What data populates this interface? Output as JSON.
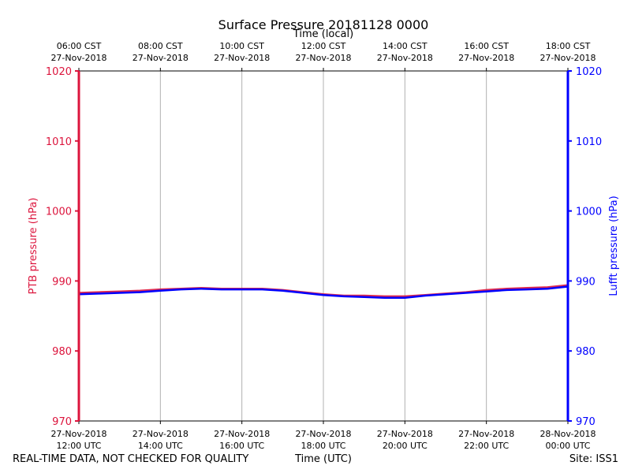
{
  "chart_data": {
    "type": "line",
    "title": "Surface Pressure 20181128 0000",
    "top_axis_label": "Time (local)",
    "xlabel": "Time (UTC)",
    "ylabel_left": "PTB pressure (hPa)",
    "ylabel_right": "Lufft pressure (hPa)",
    "ylim": [
      970,
      1020
    ],
    "yticks": [
      970,
      980,
      990,
      1000,
      1010,
      1020
    ],
    "xlim_hours": [
      0,
      12
    ],
    "bottom_ticks": [
      {
        "hour": 0,
        "line1": "27-Nov-2018",
        "line2": "12:00 UTC"
      },
      {
        "hour": 2,
        "line1": "27-Nov-2018",
        "line2": "14:00 UTC"
      },
      {
        "hour": 4,
        "line1": "27-Nov-2018",
        "line2": "16:00 UTC"
      },
      {
        "hour": 6,
        "line1": "27-Nov-2018",
        "line2": "18:00 UTC"
      },
      {
        "hour": 8,
        "line1": "27-Nov-2018",
        "line2": "20:00 UTC"
      },
      {
        "hour": 10,
        "line1": "27-Nov-2018",
        "line2": "22:00 UTC"
      },
      {
        "hour": 12,
        "line1": "28-Nov-2018",
        "line2": "00:00 UTC"
      }
    ],
    "top_ticks": [
      {
        "hour": 0,
        "line1": "06:00 CST",
        "line2": "27-Nov-2018"
      },
      {
        "hour": 2,
        "line1": "08:00 CST",
        "line2": "27-Nov-2018"
      },
      {
        "hour": 4,
        "line1": "10:00 CST",
        "line2": "27-Nov-2018"
      },
      {
        "hour": 6,
        "line1": "12:00 CST",
        "line2": "27-Nov-2018"
      },
      {
        "hour": 8,
        "line1": "14:00 CST",
        "line2": "27-Nov-2018"
      },
      {
        "hour": 10,
        "line1": "16:00 CST",
        "line2": "27-Nov-2018"
      },
      {
        "hour": 12,
        "line1": "18:00 CST",
        "line2": "27-Nov-2018"
      }
    ],
    "series": [
      {
        "name": "PTB pressure",
        "color": "#dc143c",
        "x": [
          0,
          0.5,
          1,
          1.5,
          2,
          2.5,
          3,
          3.5,
          4,
          4.5,
          5,
          5.5,
          6,
          6.5,
          7,
          7.5,
          8,
          8.5,
          9,
          9.5,
          10,
          10.5,
          11,
          11.5,
          12
        ],
        "y": [
          988.3,
          988.4,
          988.5,
          988.6,
          988.8,
          988.9,
          989.0,
          988.9,
          988.9,
          988.9,
          988.7,
          988.4,
          988.1,
          987.9,
          987.9,
          987.8,
          987.8,
          988.0,
          988.2,
          988.4,
          988.7,
          988.9,
          989.0,
          989.1,
          989.4
        ]
      },
      {
        "name": "Lufft pressure",
        "color": "#0000ff",
        "x": [
          0,
          0.5,
          1,
          1.5,
          2,
          2.5,
          3,
          3.5,
          4,
          4.5,
          5,
          5.5,
          6,
          6.5,
          7,
          7.5,
          8,
          8.5,
          9,
          9.5,
          10,
          10.5,
          11,
          11.5,
          12
        ],
        "y": [
          988.1,
          988.2,
          988.3,
          988.4,
          988.6,
          988.8,
          988.9,
          988.8,
          988.8,
          988.8,
          988.6,
          988.3,
          988.0,
          987.8,
          987.7,
          987.6,
          987.6,
          987.9,
          988.1,
          988.3,
          988.5,
          988.7,
          988.8,
          988.9,
          989.2
        ]
      }
    ]
  },
  "footer": {
    "left": "REAL-TIME DATA, NOT CHECKED FOR QUALITY",
    "center": "Time (UTC)",
    "right": "Site: ISS1"
  }
}
